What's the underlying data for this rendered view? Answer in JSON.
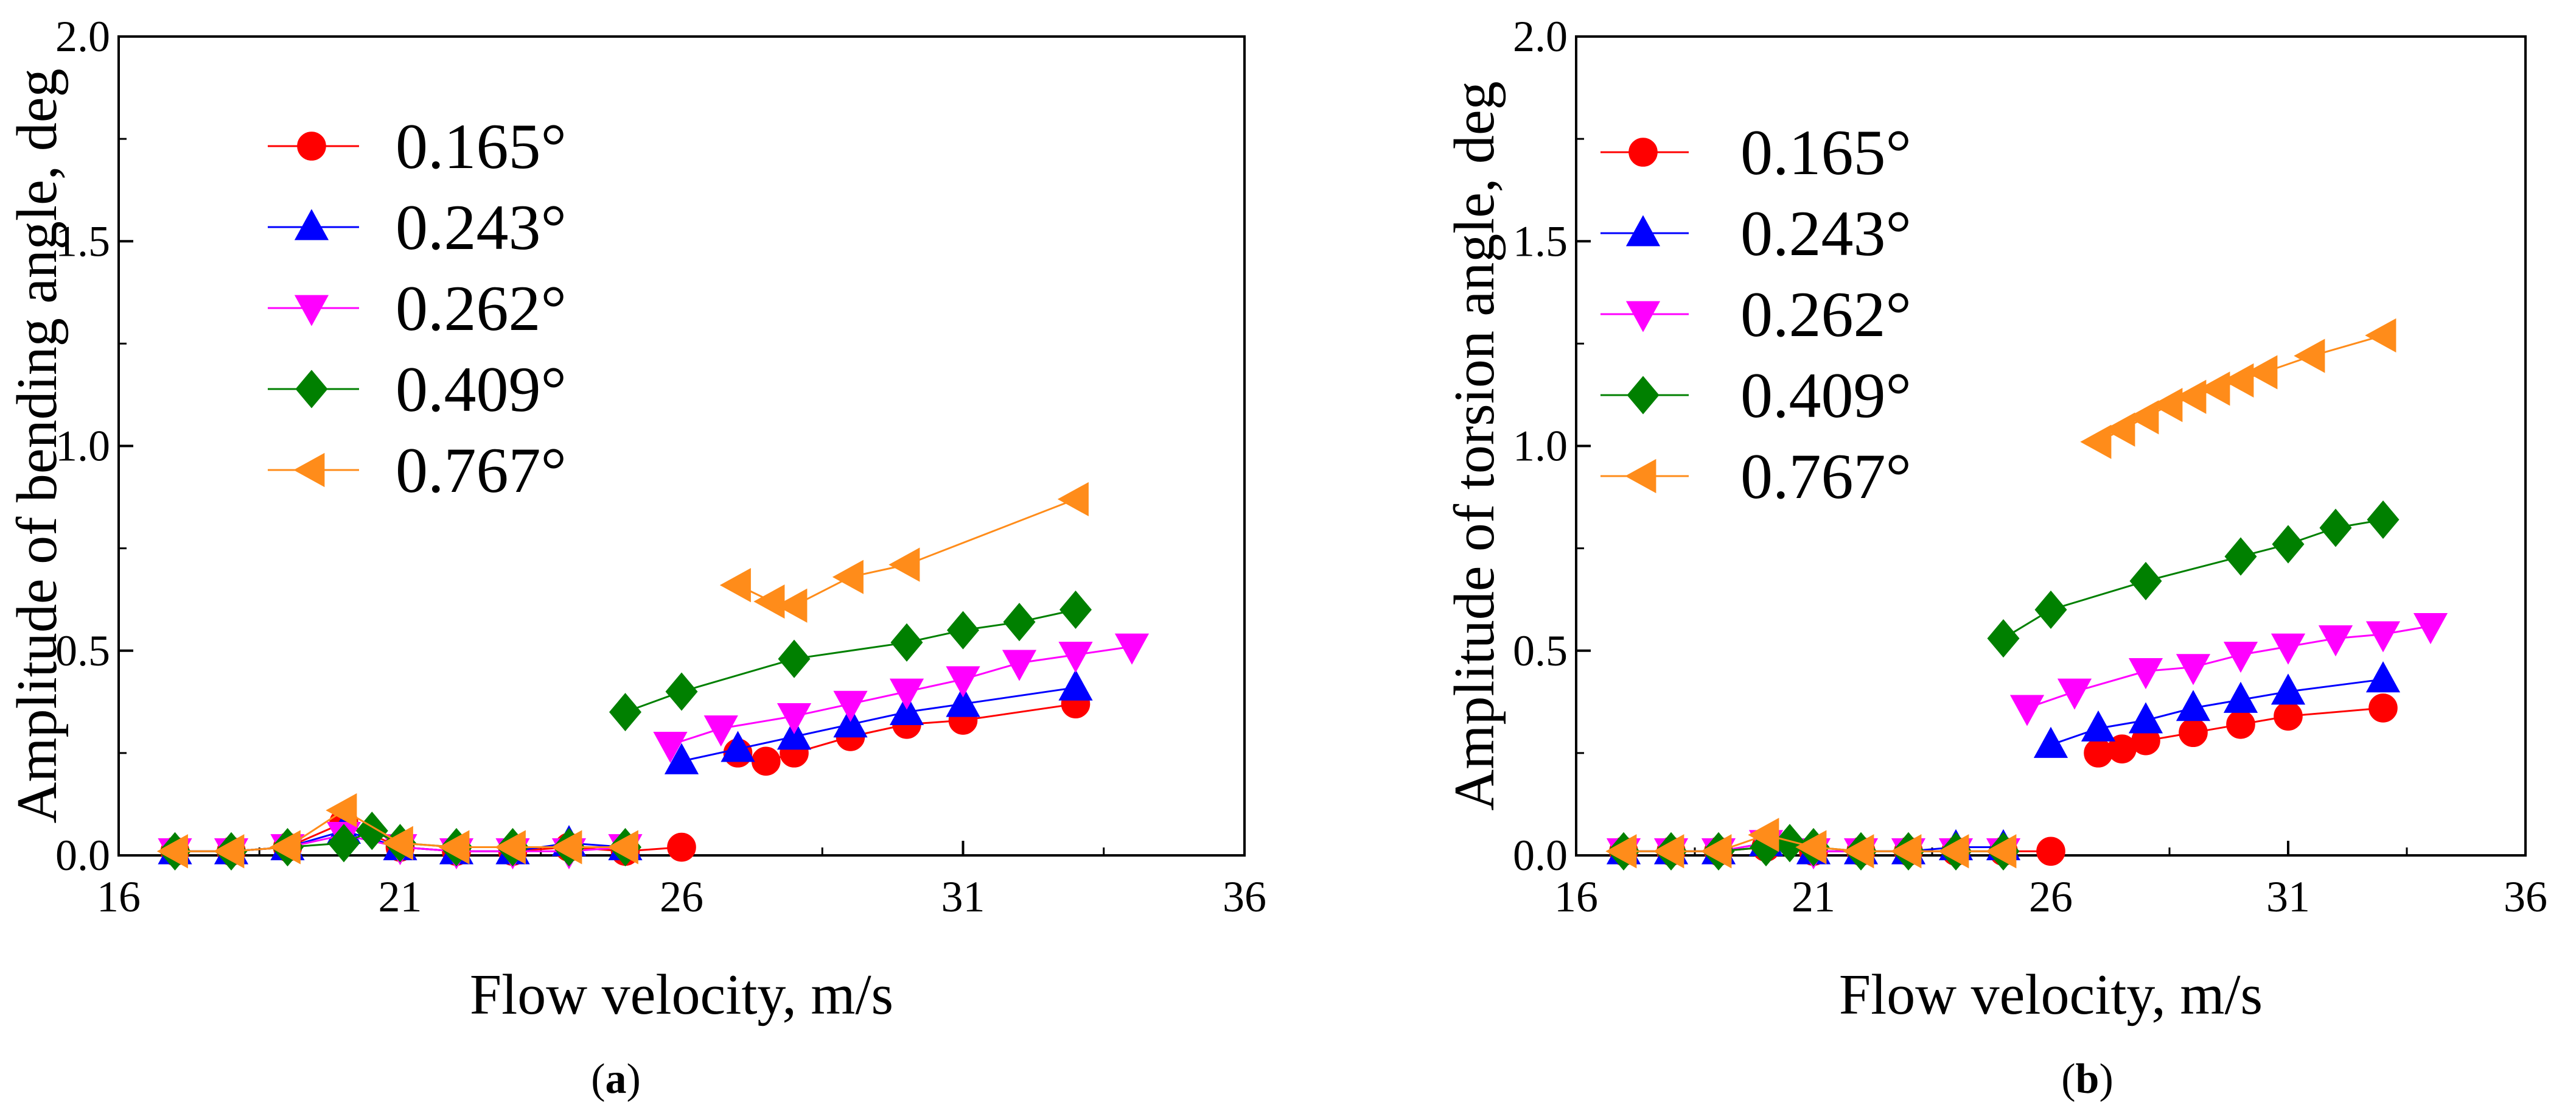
{
  "chart_data": [
    {
      "type": "line",
      "panel": "a",
      "caption": {
        "open": "(",
        "letter": "a",
        "close": ")"
      },
      "xlabel": "Flow velocity, m/s",
      "ylabel": "Amplitude of bending angle, deg",
      "xlim": [
        16,
        36
      ],
      "ylim": [
        0,
        2.0
      ],
      "xticks": [
        "16",
        "21",
        "26",
        "31",
        "36"
      ],
      "yticks": [
        "0.0",
        "0.5",
        "1.0",
        "1.5",
        "2.0"
      ],
      "legend_position": "top-left",
      "series": [
        {
          "name": "0.165°",
          "color": "#ff0000",
          "marker": "circle",
          "segments": [
            {
              "x": [
                17,
                18,
                19,
                20,
                21,
                22,
                23,
                24,
                25,
                26
              ],
              "y": [
                0.01,
                0.01,
                0.02,
                0.08,
                0.02,
                0.01,
                0.01,
                0.02,
                0.01,
                0.02
              ]
            },
            {
              "x": [
                27,
                27.5,
                28,
                29,
                30,
                31,
                33
              ],
              "y": [
                0.25,
                0.23,
                0.25,
                0.29,
                0.32,
                0.33,
                0.37
              ]
            }
          ]
        },
        {
          "name": "0.243°",
          "color": "#0000ff",
          "marker": "triangle-up",
          "segments": [
            {
              "x": [
                17,
                18,
                19,
                20,
                21,
                22,
                23,
                24,
                25
              ],
              "y": [
                0.01,
                0.01,
                0.02,
                0.06,
                0.02,
                0.01,
                0.01,
                0.03,
                0.02
              ]
            },
            {
              "x": [
                26,
                27,
                28,
                29,
                30,
                31,
                33
              ],
              "y": [
                0.23,
                0.26,
                0.29,
                0.32,
                0.35,
                0.37,
                0.41
              ]
            }
          ]
        },
        {
          "name": "0.262°",
          "color": "#ff00ff",
          "marker": "triangle-down",
          "segments": [
            {
              "x": [
                17,
                18,
                19,
                20,
                21,
                22,
                23,
                24,
                25
              ],
              "y": [
                0.01,
                0.01,
                0.02,
                0.05,
                0.02,
                0.01,
                0.01,
                0.01,
                0.02
              ]
            },
            {
              "x": [
                25.8,
                26.7,
                28,
                29,
                30,
                31,
                32,
                33,
                34
              ],
              "y": [
                0.27,
                0.31,
                0.34,
                0.37,
                0.4,
                0.43,
                0.47,
                0.49,
                0.51
              ]
            }
          ]
        },
        {
          "name": "0.409°",
          "color": "#008000",
          "marker": "diamond",
          "segments": [
            {
              "x": [
                17,
                18,
                19,
                20,
                20.5,
                21,
                22,
                23,
                24,
                25
              ],
              "y": [
                0.01,
                0.01,
                0.02,
                0.03,
                0.06,
                0.03,
                0.02,
                0.02,
                0.02,
                0.02
              ]
            },
            {
              "x": [
                25,
                26,
                28,
                30,
                31,
                32,
                33
              ],
              "y": [
                0.35,
                0.4,
                0.48,
                0.52,
                0.55,
                0.57,
                0.6
              ]
            }
          ]
        },
        {
          "name": "0.767°",
          "color": "#ff8c1a",
          "marker": "triangle-left",
          "segments": [
            {
              "x": [
                17,
                18,
                19,
                20,
                21,
                22,
                23,
                24,
                25
              ],
              "y": [
                0.01,
                0.01,
                0.02,
                0.11,
                0.03,
                0.02,
                0.02,
                0.02,
                0.02
              ]
            },
            {
              "x": [
                27,
                27.6,
                28,
                29,
                30,
                33
              ],
              "y": [
                0.66,
                0.62,
                0.61,
                0.68,
                0.71,
                0.87
              ]
            }
          ]
        }
      ]
    },
    {
      "type": "line",
      "panel": "b",
      "caption": {
        "open": "(",
        "letter": "b",
        "close": ")"
      },
      "xlabel": "Flow velocity, m/s",
      "ylabel": "Amplitude of torsion angle, deg",
      "xlim": [
        16,
        36
      ],
      "ylim": [
        0,
        2.0
      ],
      "xticks": [
        "16",
        "21",
        "26",
        "31",
        "36"
      ],
      "yticks": [
        "0.0",
        "0.5",
        "1.0",
        "1.5",
        "2.0"
      ],
      "legend_position": "top-left",
      "series": [
        {
          "name": "0.165°",
          "color": "#ff0000",
          "marker": "circle",
          "segments": [
            {
              "x": [
                17,
                18,
                19,
                20,
                21,
                22,
                23,
                24,
                25,
                26
              ],
              "y": [
                0.01,
                0.01,
                0.01,
                0.02,
                0.01,
                0.01,
                0.01,
                0.01,
                0.01,
                0.01
              ]
            },
            {
              "x": [
                27,
                27.5,
                28,
                29,
                30,
                31,
                33
              ],
              "y": [
                0.25,
                0.26,
                0.28,
                0.3,
                0.32,
                0.34,
                0.36
              ]
            }
          ]
        },
        {
          "name": "0.243°",
          "color": "#0000ff",
          "marker": "triangle-up",
          "segments": [
            {
              "x": [
                17,
                18,
                19,
                20,
                21,
                22,
                23,
                24,
                25
              ],
              "y": [
                0.01,
                0.01,
                0.01,
                0.03,
                0.01,
                0.01,
                0.01,
                0.02,
                0.02
              ]
            },
            {
              "x": [
                26,
                27,
                28,
                29,
                30,
                31,
                33
              ],
              "y": [
                0.27,
                0.31,
                0.33,
                0.36,
                0.38,
                0.4,
                0.43
              ]
            }
          ]
        },
        {
          "name": "0.262°",
          "color": "#ff00ff",
          "marker": "triangle-down",
          "segments": [
            {
              "x": [
                17,
                18,
                19,
                20,
                21,
                22,
                23,
                24,
                25
              ],
              "y": [
                0.01,
                0.01,
                0.01,
                0.03,
                0.01,
                0.01,
                0.01,
                0.01,
                0.01
              ]
            },
            {
              "x": [
                25.5,
                26.5,
                28,
                29,
                30,
                31,
                32,
                33,
                34
              ],
              "y": [
                0.36,
                0.4,
                0.45,
                0.46,
                0.49,
                0.51,
                0.53,
                0.54,
                0.56
              ]
            }
          ]
        },
        {
          "name": "0.409°",
          "color": "#008000",
          "marker": "diamond",
          "segments": [
            {
              "x": [
                17,
                18,
                19,
                20,
                20.5,
                21,
                22,
                23,
                24,
                25
              ],
              "y": [
                0.01,
                0.01,
                0.01,
                0.02,
                0.03,
                0.02,
                0.01,
                0.01,
                0.01,
                0.01
              ]
            },
            {
              "x": [
                25,
                26,
                28,
                30,
                31,
                32,
                33
              ],
              "y": [
                0.53,
                0.6,
                0.67,
                0.73,
                0.76,
                0.8,
                0.82
              ]
            }
          ]
        },
        {
          "name": "0.767°",
          "color": "#ff8c1a",
          "marker": "triangle-left",
          "segments": [
            {
              "x": [
                17,
                18,
                19,
                20,
                21,
                22,
                23,
                24,
                25
              ],
              "y": [
                0.01,
                0.01,
                0.01,
                0.05,
                0.02,
                0.01,
                0.01,
                0.01,
                0.01
              ]
            },
            {
              "x": [
                27,
                27.5,
                28,
                28.5,
                29,
                29.5,
                30,
                30.5,
                31.5,
                33
              ],
              "y": [
                1.01,
                1.04,
                1.07,
                1.1,
                1.12,
                1.14,
                1.16,
                1.18,
                1.22,
                1.27
              ]
            }
          ]
        }
      ]
    }
  ]
}
